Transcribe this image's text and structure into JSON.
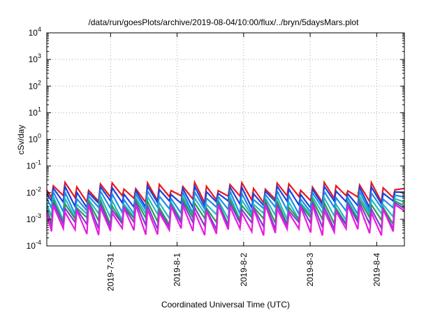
{
  "chart_data": {
    "type": "line",
    "title": "/data/run/goesPlots/archive/2019-08-04/10:00/flux/../bryn/5daysMars.plot",
    "xlabel": "Coordinated Universal Time (UTC)",
    "ylabel": "cSv/day",
    "y_scale": "log",
    "ylim": [
      0.0001,
      10000
    ],
    "y_ticks": [
      {
        "value": 0.0001,
        "base": "10",
        "exp": "-4"
      },
      {
        "value": 0.001,
        "base": "10",
        "exp": "-3"
      },
      {
        "value": 0.01,
        "base": "10",
        "exp": "-2"
      },
      {
        "value": 0.1,
        "base": "10",
        "exp": "-1"
      },
      {
        "value": 1,
        "base": "10",
        "exp": "0"
      },
      {
        "value": 10,
        "base": "10",
        "exp": "1"
      },
      {
        "value": 100,
        "base": "10",
        "exp": "2"
      },
      {
        "value": 1000,
        "base": "10",
        "exp": "3"
      },
      {
        "value": 10000,
        "base": "10",
        "exp": "4"
      }
    ],
    "x_ticks": [
      "2019-7-31",
      "2019-8-1",
      "2019-8-2",
      "2019-8-3",
      "2019-8-4"
    ],
    "xlim": [
      "2019-07-30 01:00",
      "2019-08-04 10:00"
    ],
    "x_tick_times": [
      "2019-07-31 00:00",
      "2019-08-01 00:00",
      "2019-08-02 00:00",
      "2019-08-03 00:00",
      "2019-08-04 00:00"
    ],
    "grid": true,
    "sawtooth_period_hours": 4.25,
    "series": [
      {
        "color": "#e8181c",
        "peak": 0.018,
        "trough": 0.006
      },
      {
        "color": "#1c3fe0",
        "peak": 0.013,
        "trough": 0.0038
      },
      {
        "color": "#1c8ce8",
        "peak": 0.0085,
        "trough": 0.0022
      },
      {
        "color": "#27b8c8",
        "peak": 0.0055,
        "trough": 0.0013
      },
      {
        "color": "#2a9a52",
        "peak": 0.004,
        "trough": 0.0009
      },
      {
        "color": "#7a3fd0",
        "peak": 0.0032,
        "trough": 0.0006
      },
      {
        "color": "#e81ce0",
        "peak": 0.0026,
        "trough": 0.00035
      }
    ]
  }
}
